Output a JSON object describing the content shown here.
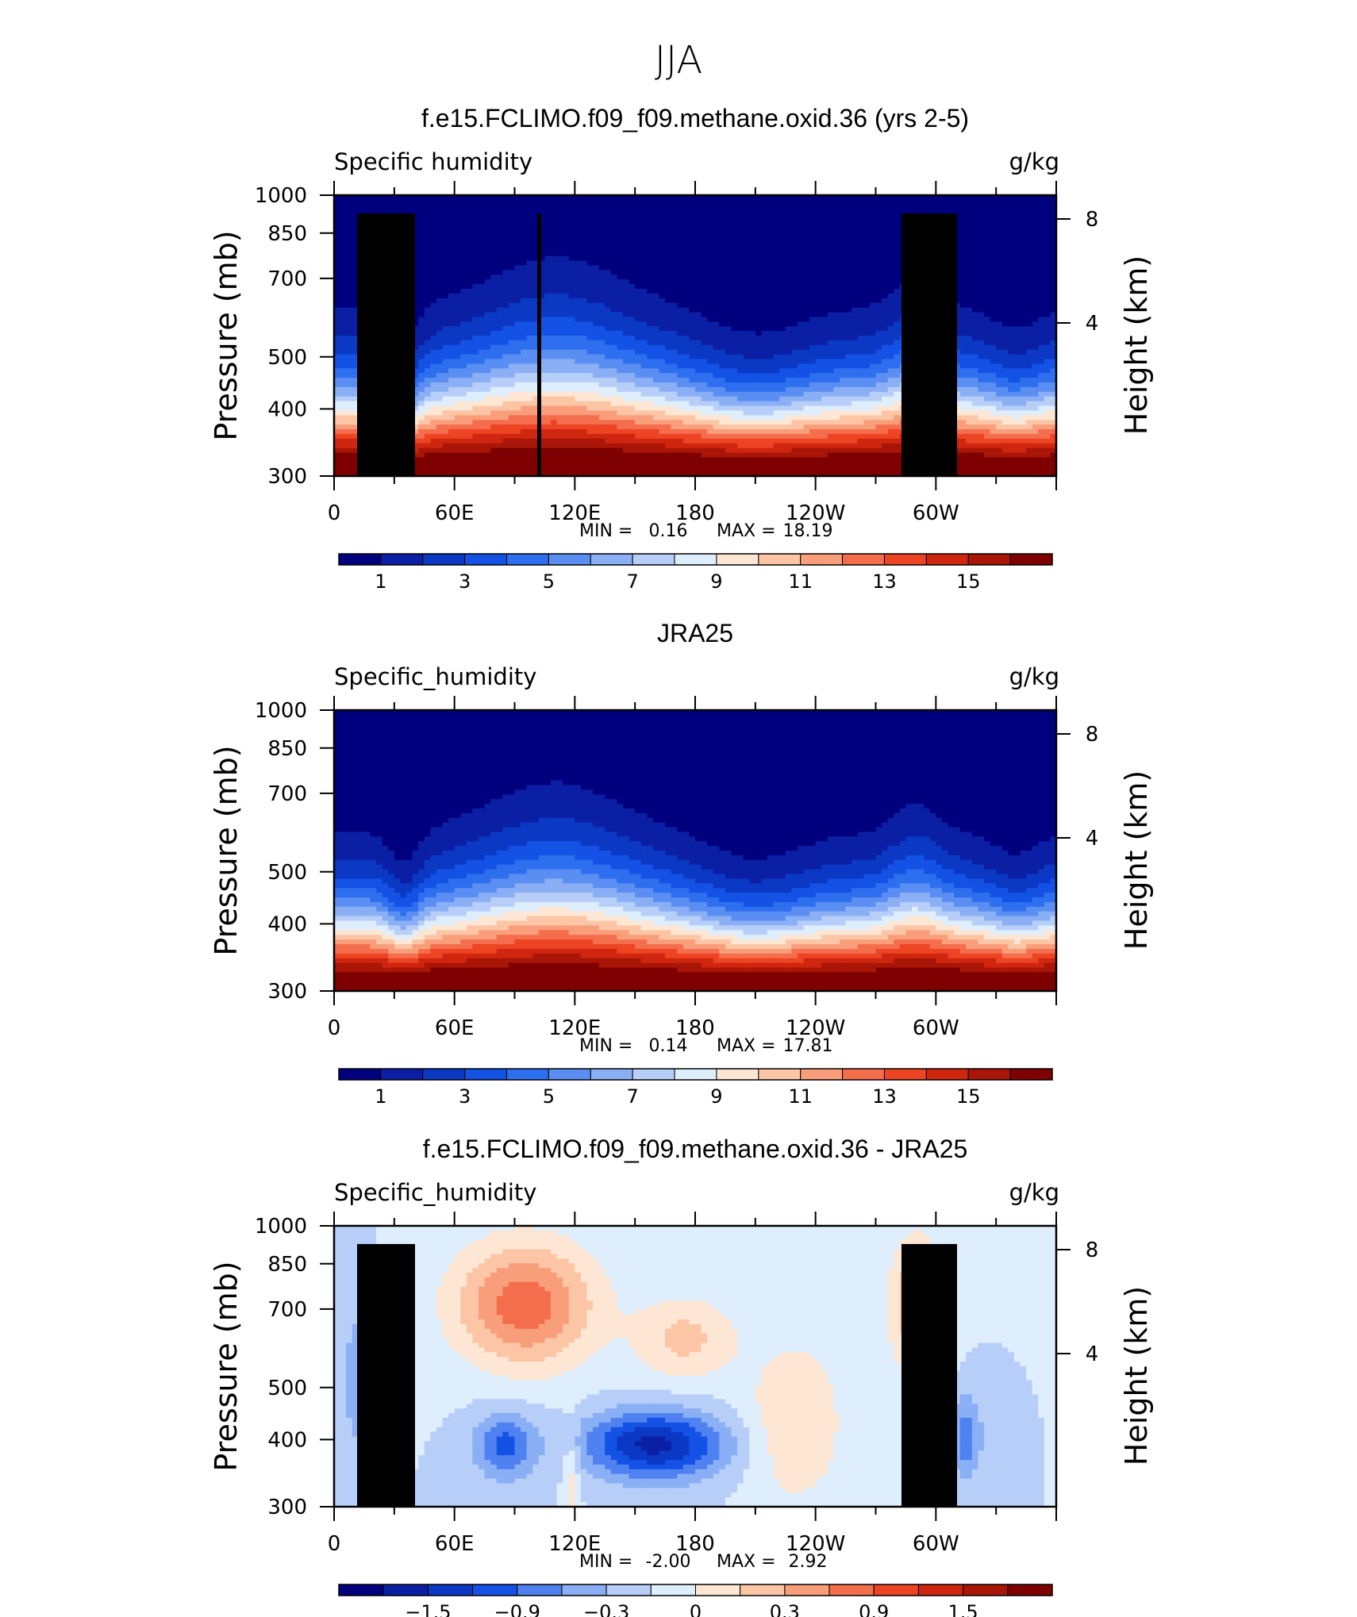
{
  "figure_title": "JJA",
  "colors": {
    "humidity_scale": [
      "#00007f",
      "#0a1fa3",
      "#0b39c4",
      "#1452e6",
      "#2d6fee",
      "#5b8ef3",
      "#8aaff5",
      "#b7cff8",
      "#dfeefc",
      "#fde7d4",
      "#fcc6a6",
      "#f99e7b",
      "#f46e4d",
      "#ed4423",
      "#d0260f",
      "#a91608",
      "#7f0000"
    ],
    "diff_scale": [
      "#00007f",
      "#0a1fa3",
      "#0b39c4",
      "#1452e6",
      "#4f82f0",
      "#8aaff5",
      "#b7cff8",
      "#dfeefc",
      "#fde7d4",
      "#fcc6a6",
      "#f99e7b",
      "#f46e4d",
      "#ed4423",
      "#d0260f",
      "#a91608",
      "#7f0000"
    ],
    "topography": "#000000"
  },
  "chart_data": [
    {
      "type": "heatmap",
      "title": "f.e15.FCLIMO.f09_f09.methane.oxid.36 (yrs 2-5)",
      "variable": "Specific humidity",
      "units": "g/kg",
      "ylabel": "Pressure (mb)",
      "ylabel_right": "Height (km)",
      "x_ticks": [
        "0",
        "60E",
        "120E",
        "180",
        "120W",
        "60W"
      ],
      "x_range": [
        0,
        360
      ],
      "y_ticks": [
        "300",
        "400",
        "500",
        "700",
        "850",
        "1000"
      ],
      "y_range": [
        1000,
        300
      ],
      "height_ticks": [
        "8",
        "4"
      ],
      "min_label": "MIN =",
      "min_value": "0.16",
      "max_label": "MAX =",
      "max_value": "18.19",
      "colorbar_labels": [
        "1",
        "3",
        "5",
        "7",
        "9",
        "11",
        "13",
        "15"
      ],
      "colorbar_bins": 17,
      "topography": true
    },
    {
      "type": "heatmap",
      "title": "JRA25",
      "variable": "Specific_humidity",
      "units": "g/kg",
      "ylabel": "Pressure (mb)",
      "ylabel_right": "Height (km)",
      "x_ticks": [
        "0",
        "60E",
        "120E",
        "180",
        "120W",
        "60W"
      ],
      "x_range": [
        0,
        360
      ],
      "y_ticks": [
        "300",
        "400",
        "500",
        "700",
        "850",
        "1000"
      ],
      "y_range": [
        1000,
        300
      ],
      "height_ticks": [
        "8",
        "4"
      ],
      "min_label": "MIN =",
      "min_value": "0.14",
      "max_label": "MAX =",
      "max_value": "17.81",
      "colorbar_labels": [
        "1",
        "3",
        "5",
        "7",
        "9",
        "11",
        "13",
        "15"
      ],
      "colorbar_bins": 17,
      "topography": false
    },
    {
      "type": "heatmap",
      "title": "f.e15.FCLIMO.f09_f09.methane.oxid.36 - JRA25",
      "variable": "Specific_humidity",
      "units": "g/kg",
      "ylabel": "Pressure (mb)",
      "ylabel_right": "Height (km)",
      "x_ticks": [
        "0",
        "60E",
        "120E",
        "180",
        "120W",
        "60W"
      ],
      "x_range": [
        0,
        360
      ],
      "y_ticks": [
        "300",
        "400",
        "500",
        "700",
        "850",
        "1000"
      ],
      "y_range": [
        1000,
        300
      ],
      "height_ticks": [
        "8",
        "4"
      ],
      "min_label": "MIN =",
      "min_value": "-2.00",
      "max_label": "MAX =",
      "max_value": "2.92",
      "colorbar_labels": [
        "−1.5",
        "−0.9",
        "−0.3",
        "0",
        "0.3",
        "0.9",
        "1.5"
      ],
      "colorbar_bins": 16,
      "topography": true
    }
  ]
}
